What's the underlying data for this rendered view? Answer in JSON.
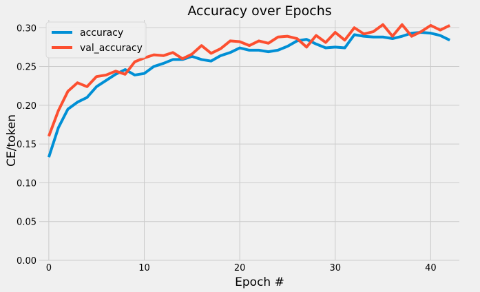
{
  "chart_data": {
    "type": "line",
    "title": "Accuracy over Epochs",
    "xlabel": "Epoch #",
    "ylabel": "CE/token",
    "xlim": [
      -1,
      43
    ],
    "ylim": [
      0,
      0.31
    ],
    "xticks": [
      0,
      10,
      20,
      30,
      40
    ],
    "yticks": [
      0.0,
      0.05,
      0.1,
      0.15,
      0.2,
      0.25,
      0.3
    ],
    "grid": true,
    "legend_position": "top-left",
    "x": [
      0,
      1,
      2,
      3,
      4,
      5,
      6,
      7,
      8,
      9,
      10,
      11,
      12,
      13,
      14,
      15,
      16,
      17,
      18,
      19,
      20,
      21,
      22,
      23,
      24,
      25,
      26,
      27,
      28,
      29,
      30,
      31,
      32,
      33,
      34,
      35,
      36,
      37,
      38,
      39,
      40,
      41,
      42
    ],
    "series": [
      {
        "name": "accuracy",
        "color": "#008fd5",
        "values": [
          0.133,
          0.171,
          0.195,
          0.204,
          0.21,
          0.224,
          0.232,
          0.24,
          0.246,
          0.239,
          0.241,
          0.25,
          0.254,
          0.259,
          0.259,
          0.263,
          0.259,
          0.257,
          0.264,
          0.268,
          0.274,
          0.271,
          0.271,
          0.269,
          0.271,
          0.276,
          0.283,
          0.285,
          0.279,
          0.274,
          0.275,
          0.274,
          0.291,
          0.289,
          0.288,
          0.288,
          0.286,
          0.289,
          0.293,
          0.294,
          0.293,
          0.29,
          0.284
        ]
      },
      {
        "name": "val_accuracy",
        "color": "#fc4f30",
        "values": [
          0.16,
          0.193,
          0.218,
          0.229,
          0.224,
          0.237,
          0.239,
          0.244,
          0.24,
          0.256,
          0.261,
          0.265,
          0.264,
          0.268,
          0.26,
          0.266,
          0.277,
          0.267,
          0.273,
          0.283,
          0.282,
          0.277,
          0.283,
          0.28,
          0.288,
          0.289,
          0.286,
          0.275,
          0.29,
          0.281,
          0.294,
          0.284,
          0.3,
          0.292,
          0.295,
          0.304,
          0.289,
          0.304,
          0.289,
          0.295,
          0.303,
          0.297,
          0.303
        ]
      }
    ]
  }
}
